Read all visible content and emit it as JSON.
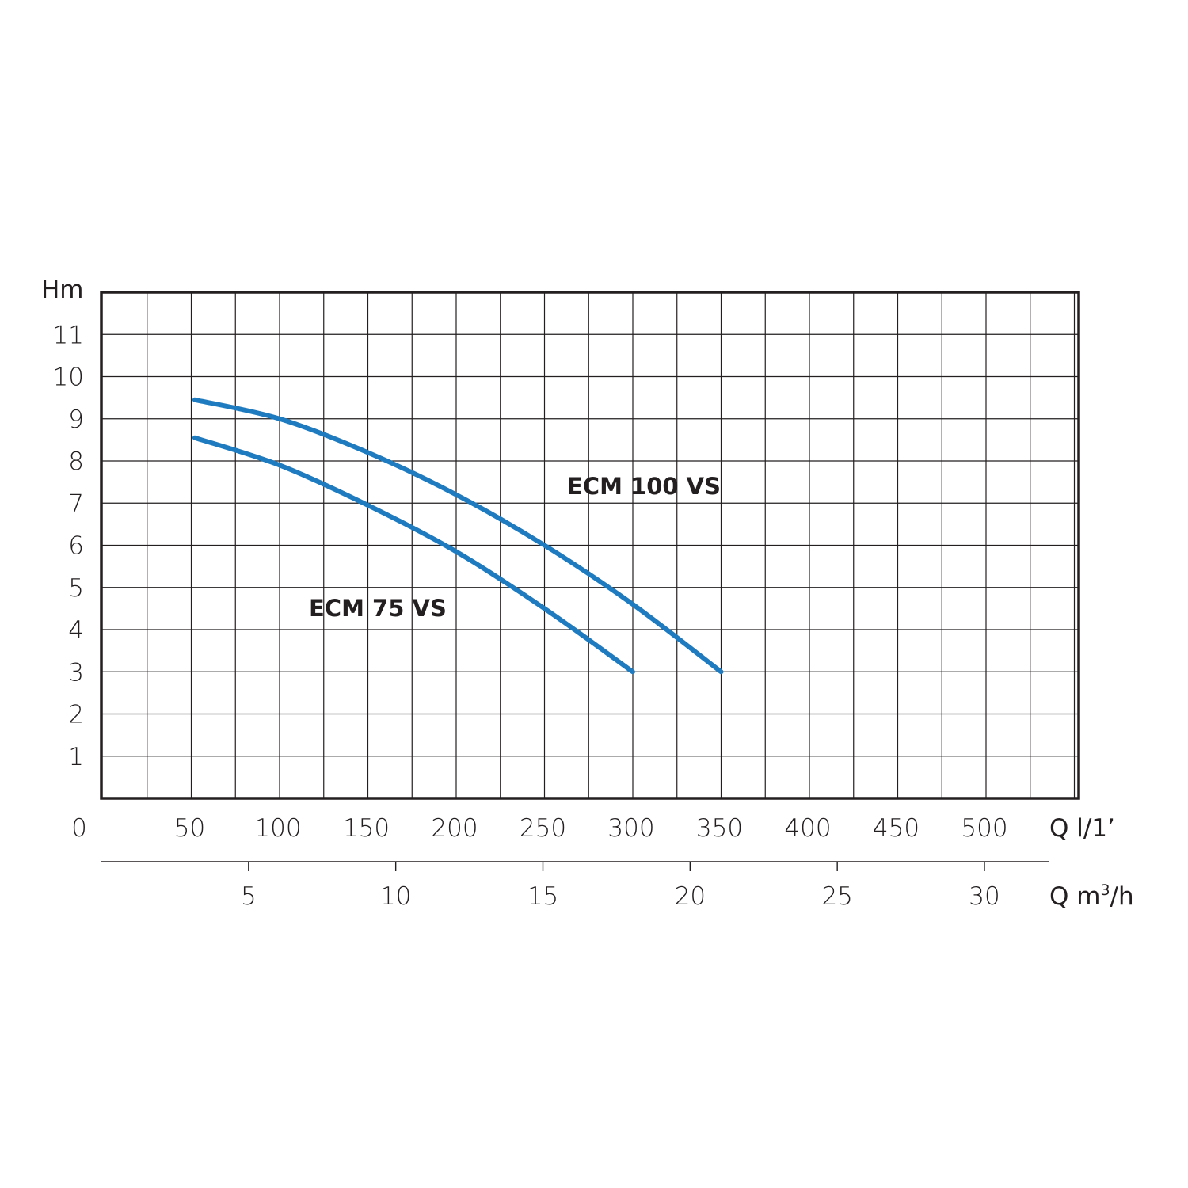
{
  "chart_data": {
    "type": "line",
    "ylabel": "Hm",
    "xlabel": "Q l/1’",
    "x2label": "Q m3/h",
    "yticks": [
      "1",
      "2",
      "3",
      "4",
      "5",
      "6",
      "7",
      "8",
      "9",
      "10",
      "11"
    ],
    "ylim": [
      0,
      12
    ],
    "xticks": [
      "0",
      "50",
      "100",
      "150",
      "200",
      "250",
      "300",
      "350",
      "400",
      "450",
      "500"
    ],
    "xlim": [
      0,
      553
    ],
    "x2ticks": [
      "5",
      "10",
      "15",
      "20",
      "25",
      "30"
    ],
    "x2lim": [
      0,
      32.2
    ],
    "grid": true,
    "curve_color": "#1f7bbf",
    "series": [
      {
        "name": "ECM 100 VS",
        "x": [
          52,
          100,
          150,
          200,
          250,
          300,
          350
        ],
        "y": [
          9.45,
          9.0,
          8.2,
          7.2,
          6.0,
          4.6,
          3.0
        ]
      },
      {
        "name": "ECM 75 VS",
        "x": [
          52,
          100,
          150,
          200,
          250,
          300
        ],
        "y": [
          8.55,
          7.9,
          6.95,
          5.85,
          4.5,
          3.0
        ]
      }
    ]
  }
}
